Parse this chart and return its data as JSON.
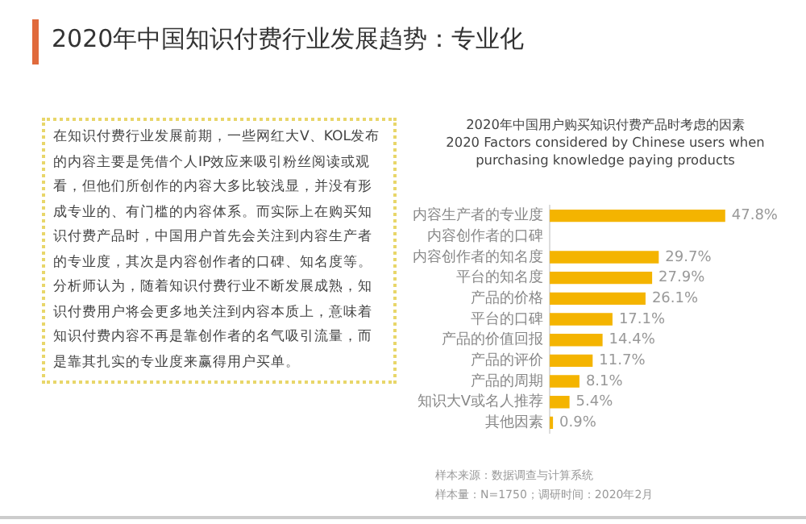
{
  "chart_data": {
    "type": "bar",
    "orientation": "horizontal",
    "title": "2020年中国知识付费行业发展趋势：专业化",
    "subtitle": "2020年中国用户购买知识付费产品时考虑的因素\n2020 Factors considered by Chinese users when purchasing knowledge paying products",
    "categories": [
      "内容生产者的专业度",
      "内容创作者的口碑",
      "内容创作者的知名度",
      "平台的知名度",
      "产品的价格",
      "平台的口碑",
      "产品的价值回报",
      "产品的评价",
      "产品的周期",
      "知识大V或名人推荐",
      "其他因素"
    ],
    "values": [
      47.8,
      null,
      29.7,
      27.9,
      26.1,
      17.1,
      14.4,
      11.7,
      8.1,
      5.4,
      0.9
    ],
    "value_labels": [
      "47.8%",
      null,
      "29.7%",
      "27.9%",
      "26.1%",
      "17.1%",
      "14.4%",
      "11.7%",
      "8.1%",
      "5.4%",
      "0.9%"
    ],
    "color": "#f4b400",
    "grid": false,
    "annotations": [
      "在知识付费行业发展前期，一些网红大V、KOL发布的内容主要是凭借个人IP效应来吸引粉丝阅读或观看，但他们所创作的内容大多比较浅显，并没有形成专业的、有门槛的内容体系。而实际上在购买知识付费产品时，中国用户首先会关注到内容生产者的专业度，其次是内容创作者的口碑、知名度等。分析师认为，随着知识付费行业不断发展成熟，知识付费用户将会更多地关注到内容本质上，意味着知识付费内容不再是靠创作者的名气吸引流量，而是靠其扎实的专业度来赢得用户买单。",
      "样本来源：数据调查与计算系统",
      "样本量：N=1750；调研时间：2020年2月"
    ]
  }
}
